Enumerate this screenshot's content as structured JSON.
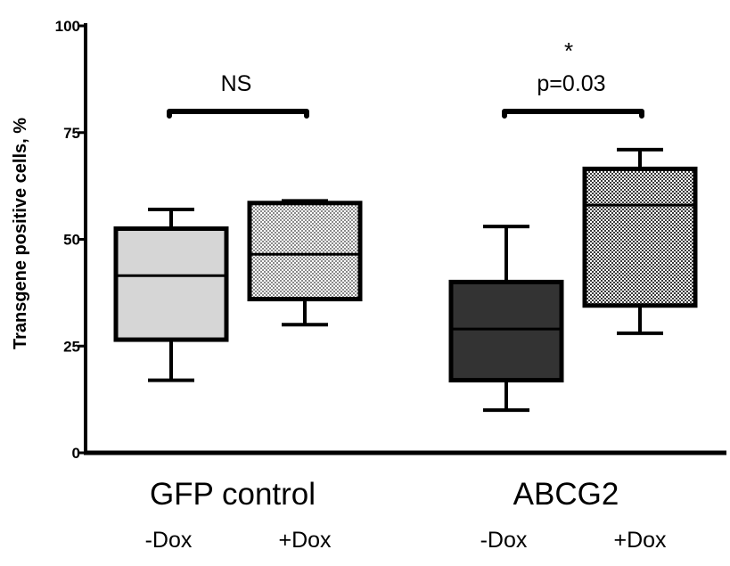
{
  "chart_data": {
    "type": "box",
    "ylabel": "Transgene positive cells, %",
    "ylim": [
      0,
      100
    ],
    "yticks": [
      0,
      25,
      50,
      75,
      100
    ],
    "groups": [
      {
        "label": "GFP control",
        "comparison_label": "NS",
        "star": "",
        "boxes": [
          {
            "label": "-Dox",
            "min": 17,
            "q1": 26.5,
            "median": 41.5,
            "q3": 52.5,
            "max": 57,
            "fill": "#d6d6d6",
            "pattern": "solid"
          },
          {
            "label": "+Dox",
            "min": 30,
            "q1": 36,
            "median": 46.5,
            "q3": 58.5,
            "max": 59,
            "fill": "#bdbdbd",
            "pattern": "checker-light"
          }
        ]
      },
      {
        "label": "ABCG2",
        "comparison_label": "p=0.03",
        "star": "*",
        "boxes": [
          {
            "label": "-Dox",
            "min": 10,
            "q1": 17,
            "median": 29,
            "q3": 40,
            "max": 53,
            "fill": "#333333",
            "pattern": "solid"
          },
          {
            "label": "+Dox",
            "min": 28,
            "q1": 34.5,
            "median": 58,
            "q3": 66.5,
            "max": 71,
            "fill": "#777777",
            "pattern": "checker-dark"
          }
        ]
      }
    ],
    "colors": {
      "axis": "#000000",
      "stroke": "#000000"
    }
  }
}
